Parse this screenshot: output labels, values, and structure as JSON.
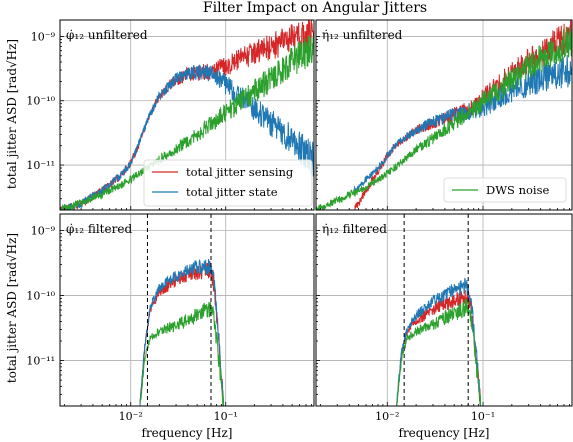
{
  "figure": {
    "title": "Filter Impact on Angular Jitters",
    "ylabel": "total jitter ASD [rad√Hz]",
    "xlabel": "frequency [Hz]"
  },
  "colors": {
    "sensing": "#d62728",
    "state": "#1f77b4",
    "noise": "#2ca02c",
    "grid": "#b0b0b0"
  },
  "chart_data": [
    {
      "type": "line",
      "panel": "top-left",
      "label": "φ̇₁₂ unfiltered",
      "xscale": "log",
      "yscale": "log",
      "xlim": [
        0.0018,
        0.85
      ],
      "ylim": [
        2e-12,
        1.8e-09
      ],
      "xticks": [
        "10⁻²",
        "10⁻¹"
      ],
      "yticks": [
        "10⁻¹¹",
        "10⁻¹⁰",
        "10⁻⁹"
      ],
      "legend": "lower-right",
      "series": [
        {
          "name": "total jitter sensing",
          "color": "sensing",
          "x": [
            0.0018,
            0.003,
            0.005,
            0.008,
            0.01,
            0.012,
            0.015,
            0.02,
            0.03,
            0.04,
            0.06,
            0.08,
            0.1,
            0.15,
            0.2,
            0.3,
            0.5,
            0.85
          ],
          "y": [
            2e-12,
            2.5e-12,
            4e-12,
            7e-12,
            1.1e-11,
            2e-11,
            5e-11,
            1.2e-10,
            2.1e-10,
            2.6e-10,
            2.8e-10,
            3e-10,
            3.5e-10,
            4.5e-10,
            5.5e-10,
            7e-10,
            9e-10,
            1.1e-09
          ]
        },
        {
          "name": "total jitter state",
          "color": "state",
          "x": [
            0.0018,
            0.003,
            0.005,
            0.008,
            0.01,
            0.012,
            0.015,
            0.02,
            0.03,
            0.04,
            0.06,
            0.08,
            0.1,
            0.15,
            0.2,
            0.3,
            0.5,
            0.85
          ],
          "y": [
            2e-12,
            2.5e-12,
            4e-12,
            7e-12,
            1.1e-11,
            2e-11,
            5e-11,
            1.2e-10,
            2.2e-10,
            2.7e-10,
            2.8e-10,
            2.4e-10,
            1.8e-10,
            1.1e-10,
            7.5e-11,
            4.5e-11,
            2.5e-11,
            1.2e-11
          ]
        },
        {
          "name": "DWS noise",
          "color": "noise",
          "x": [
            0.0018,
            0.003,
            0.005,
            0.008,
            0.01,
            0.015,
            0.02,
            0.03,
            0.05,
            0.08,
            0.1,
            0.15,
            0.2,
            0.3,
            0.5,
            0.85
          ],
          "y": [
            2e-12,
            2.6e-12,
            3.5e-12,
            5e-12,
            6e-12,
            9e-12,
            1.2e-11,
            1.8e-11,
            3e-11,
            5e-11,
            6.5e-11,
            1e-10,
            1.4e-10,
            2.2e-10,
            4e-10,
            7e-10
          ]
        }
      ]
    },
    {
      "type": "line",
      "panel": "top-right",
      "label": "η̇₁₂ unfiltered",
      "xscale": "log",
      "yscale": "log",
      "xlim": [
        0.0018,
        0.85
      ],
      "ylim": [
        2e-12,
        1.8e-09
      ],
      "xticks": [
        "10⁻²",
        "10⁻¹"
      ],
      "yticks": [
        "10⁻¹¹",
        "10⁻¹⁰",
        "10⁻⁹"
      ],
      "legend": "lower-right",
      "series": [
        {
          "name": "total jitter sensing",
          "color": "sensing",
          "x": [
            0.0045,
            0.006,
            0.008,
            0.01,
            0.012,
            0.015,
            0.02,
            0.03,
            0.04,
            0.05,
            0.06,
            0.08,
            0.1,
            0.15,
            0.2,
            0.3,
            0.5,
            0.85
          ],
          "y": [
            2e-12,
            4e-12,
            8e-12,
            1.4e-11,
            2e-11,
            2.5e-11,
            3.5e-11,
            4.5e-11,
            5.5e-11,
            6e-11,
            6.5e-11,
            8.5e-11,
            1.1e-10,
            1.8e-10,
            2.6e-10,
            4e-10,
            6.5e-10,
            1.1e-09
          ]
        },
        {
          "name": "total jitter state",
          "color": "state",
          "x": [
            0.0045,
            0.006,
            0.008,
            0.01,
            0.012,
            0.015,
            0.02,
            0.03,
            0.04,
            0.05,
            0.06,
            0.08,
            0.1,
            0.15,
            0.2,
            0.3,
            0.5,
            0.85
          ],
          "y": [
            4e-12,
            6e-12,
            9e-12,
            1.4e-11,
            2e-11,
            2.6e-11,
            3.5e-11,
            4.8e-11,
            5.5e-11,
            6e-11,
            6.2e-11,
            7e-11,
            8e-11,
            1.1e-10,
            1.4e-10,
            1.9e-10,
            2.5e-10,
            3e-10
          ]
        },
        {
          "name": "DWS noise",
          "color": "noise",
          "x": [
            0.0018,
            0.003,
            0.005,
            0.008,
            0.01,
            0.015,
            0.02,
            0.03,
            0.05,
            0.08,
            0.1,
            0.15,
            0.2,
            0.3,
            0.5,
            0.85
          ],
          "y": [
            2e-12,
            2.8e-12,
            4e-12,
            6e-12,
            7.5e-12,
            1.2e-11,
            1.7e-11,
            2.6e-11,
            4.5e-11,
            7.5e-11,
            1e-10,
            1.5e-10,
            2.1e-10,
            3.3e-10,
            5.5e-10,
            9e-10
          ]
        }
      ]
    },
    {
      "type": "line",
      "panel": "bottom-left",
      "label": "φ̇₁₂ filtered",
      "xscale": "log",
      "yscale": "log",
      "xlim": [
        0.0018,
        0.85
      ],
      "ylim": [
        2e-12,
        1.8e-09
      ],
      "xticks": [
        "10⁻²",
        "10⁻¹"
      ],
      "yticks": [
        "10⁻¹¹",
        "10⁻¹⁰",
        "10⁻⁹"
      ],
      "vlines": [
        0.015,
        0.07
      ],
      "series": [
        {
          "name": "total jitter sensing",
          "color": "sensing",
          "x": [
            0.0125,
            0.014,
            0.016,
            0.02,
            0.03,
            0.04,
            0.06,
            0.07,
            0.075,
            0.085,
            0.095
          ],
          "y": [
            2e-12,
            1.5e-11,
            6e-11,
            1.1e-10,
            1.7e-10,
            2.1e-10,
            2.4e-10,
            2.5e-10,
            1.5e-10,
            2e-11,
            2e-12
          ]
        },
        {
          "name": "total jitter state",
          "color": "state",
          "x": [
            0.0125,
            0.014,
            0.016,
            0.02,
            0.03,
            0.04,
            0.06,
            0.07,
            0.075,
            0.085,
            0.095
          ],
          "y": [
            2e-12,
            1.6e-11,
            6.5e-11,
            1.3e-10,
            2e-10,
            2.5e-10,
            2.8e-10,
            2.9e-10,
            1.7e-10,
            2.2e-11,
            2e-12
          ]
        },
        {
          "name": "DWS noise",
          "color": "noise",
          "x": [
            0.0125,
            0.014,
            0.016,
            0.02,
            0.03,
            0.04,
            0.06,
            0.07,
            0.075,
            0.085,
            0.095
          ],
          "y": [
            2e-12,
            1e-11,
            2.3e-11,
            2.8e-11,
            3.5e-11,
            4.2e-11,
            5.8e-11,
            6.5e-11,
            4.5e-11,
            1e-11,
            2e-12
          ]
        }
      ]
    },
    {
      "type": "line",
      "panel": "bottom-right",
      "label": "η̇₁₂ filtered",
      "xscale": "log",
      "yscale": "log",
      "xlim": [
        0.0018,
        0.85
      ],
      "ylim": [
        2e-12,
        1.8e-09
      ],
      "xticks": [
        "10⁻²",
        "10⁻¹"
      ],
      "yticks": [
        "10⁻¹¹",
        "10⁻¹⁰",
        "10⁻⁹"
      ],
      "vlines": [
        0.015,
        0.07
      ],
      "series": [
        {
          "name": "total jitter sensing",
          "color": "sensing",
          "x": [
            0.0125,
            0.014,
            0.016,
            0.02,
            0.03,
            0.04,
            0.06,
            0.07,
            0.075,
            0.085,
            0.095
          ],
          "y": [
            2e-12,
            1.2e-11,
            2.8e-11,
            4e-11,
            6e-11,
            7.5e-11,
            9e-11,
            9.5e-11,
            6e-11,
            1e-11,
            2e-12
          ]
        },
        {
          "name": "total jitter state",
          "color": "state",
          "x": [
            0.0125,
            0.014,
            0.016,
            0.02,
            0.03,
            0.04,
            0.06,
            0.07,
            0.075,
            0.085,
            0.095
          ],
          "y": [
            2e-12,
            1.3e-11,
            3e-11,
            5e-11,
            8e-11,
            1.05e-10,
            1.3e-10,
            1.4e-10,
            8e-11,
            1.2e-11,
            2e-12
          ]
        },
        {
          "name": "DWS noise",
          "color": "noise",
          "x": [
            0.0125,
            0.014,
            0.016,
            0.02,
            0.03,
            0.04,
            0.06,
            0.07,
            0.075,
            0.085,
            0.095
          ],
          "y": [
            2e-12,
            1e-11,
            2.2e-11,
            2.8e-11,
            3.6e-11,
            4.5e-11,
            6e-11,
            6.8e-11,
            4.5e-11,
            9e-12,
            2e-12
          ]
        }
      ]
    }
  ]
}
